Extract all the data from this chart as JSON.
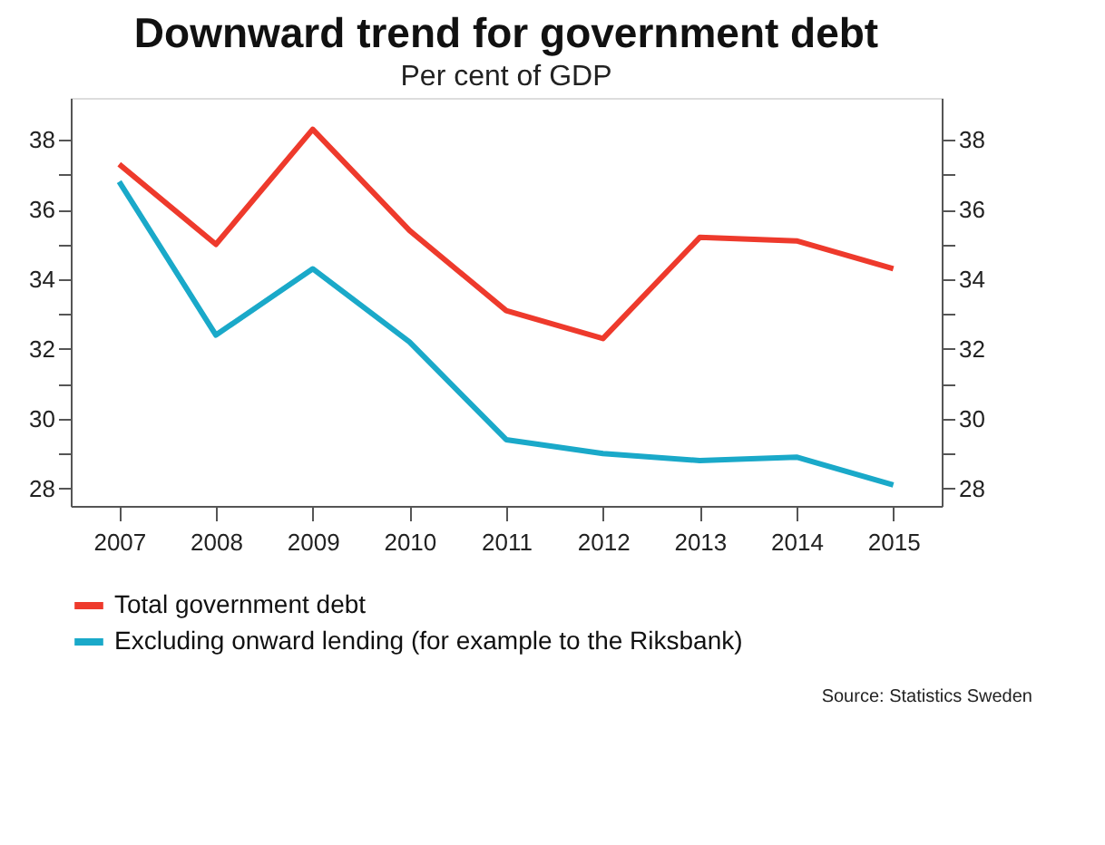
{
  "chart_data": {
    "type": "line",
    "title": "Downward trend for government debt",
    "subtitle": "Per cent of GDP",
    "categories": [
      "2007",
      "2008",
      "2009",
      "2010",
      "2011",
      "2012",
      "2013",
      "2014",
      "2015"
    ],
    "series": [
      {
        "name": "Total government debt",
        "color": "#ee3a2c",
        "values": [
          37.3,
          35.0,
          38.3,
          35.4,
          33.1,
          32.3,
          35.2,
          35.1,
          34.3
        ]
      },
      {
        "name": "Excluding onward lending (for example to the Riksbank)",
        "color": "#1aa9c9",
        "values": [
          36.8,
          32.4,
          34.3,
          32.2,
          29.4,
          29.0,
          28.8,
          28.9,
          28.1
        ]
      }
    ],
    "ylim": [
      27.5,
      39.2
    ],
    "yticks": [
      28,
      {
        "value": 29,
        "label": null
      },
      30,
      {
        "value": 31,
        "label": null
      },
      32,
      {
        "value": 33,
        "label": null
      },
      34,
      {
        "value": 35,
        "label": null
      },
      36,
      {
        "value": 37,
        "label": null
      },
      38
    ],
    "y2lim": [
      27.5,
      39.2
    ],
    "y2ticks": [
      28,
      {
        "value": 29,
        "label": null
      },
      30,
      {
        "value": 31,
        "label": null
      },
      32,
      {
        "value": 33,
        "label": null
      },
      34,
      {
        "value": 35,
        "label": null
      },
      36,
      {
        "value": 37,
        "label": null
      },
      38
    ],
    "grid": false,
    "legend": "bottom",
    "marker": "none",
    "line_style": "solid",
    "annotations": [
      "Source: Statistics Sweden"
    ]
  }
}
